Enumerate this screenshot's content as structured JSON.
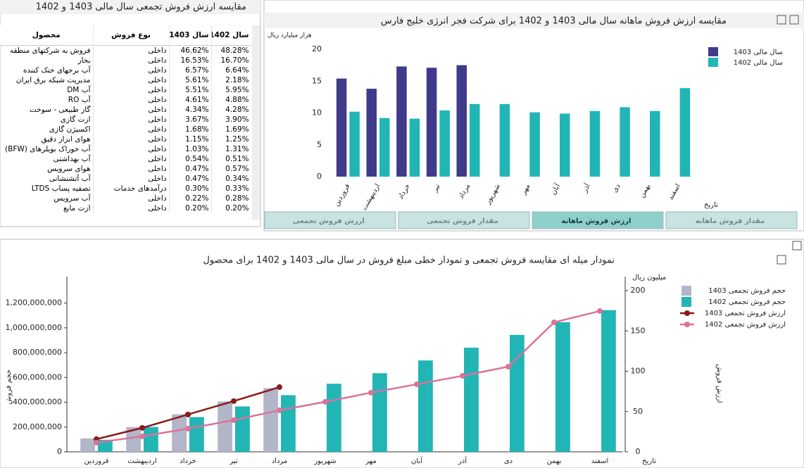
{
  "table_panel": {
    "title": "مقایسه ارزش فروش تجمعی سال مالی 1403 و 1402",
    "columns": [
      "محصول",
      "نوع فروش",
      "سال 1403",
      "سال 1402"
    ],
    "rows": [
      [
        "فروش به شرکتهای منطقه",
        "داخلی",
        "46.62%",
        "48.28%"
      ],
      [
        "بخار",
        "داخلی",
        "16.53%",
        "16.70%"
      ],
      [
        "آب برجهای خنک کننده",
        "داخلی",
        "6.57%",
        "6.64%"
      ],
      [
        "مدیریت شبکه برق ایران",
        "داخلی",
        "5.61%",
        "2.18%"
      ],
      [
        "آب DM",
        "داخلی",
        "5.51%",
        "5.95%"
      ],
      [
        "آب RO",
        "داخلی",
        "4.61%",
        "4.88%"
      ],
      [
        "گاز طبیعی - سوخت",
        "داخلی",
        "4.34%",
        "4.28%"
      ],
      [
        "ازت گازی",
        "داخلی",
        "3.67%",
        "3.90%"
      ],
      [
        "اکسیژن گازی",
        "داخلی",
        "1.68%",
        "1.69%"
      ],
      [
        "هوای ابزار دقیق",
        "داخلی",
        "1.15%",
        "1.25%"
      ],
      [
        "آب خوراک بویلرهای (BFW)",
        "داخلی",
        "1.03%",
        "1.31%"
      ],
      [
        "آب بهداشتی",
        "داخلی",
        "0.54%",
        "0.51%"
      ],
      [
        "هوای سرویس",
        "داخلی",
        "0.47%",
        "0.57%"
      ],
      [
        "آب آتشنشانی",
        "داخلی",
        "0.47%",
        "0.34%"
      ],
      [
        "تصفیه پساب LTDS",
        "درآمدهای خدمات",
        "0.30%",
        "0.33%"
      ],
      [
        "آب سرویس",
        "داخلی",
        "0.22%",
        "0.28%"
      ],
      [
        "ازت مایع",
        "داخلی",
        "0.20%",
        "0.20%"
      ]
    ]
  },
  "tabs": [
    "مقدار فروش ماهانه",
    "ارزش فروش ماهانه",
    "مقدار فروش تجمعی",
    "ارزش فروش تجمعی"
  ],
  "active_tab": 1,
  "chart_data": [
    {
      "type": "bar",
      "title": "مقایسه ارزش فروش ماهانه سال مالی 1403 و 1402 برای شرکت فجر انرژی خلیج فارس",
      "y_label": "هزار میلیارد ریال",
      "x_label": "تاریخ",
      "categories": [
        "فروردین",
        "اردیبهشت",
        "خرداد",
        "تیر",
        "مرداد",
        "شهریور",
        "مهر",
        "آبان",
        "آذر",
        "دی",
        "بهمن",
        "اسفند"
      ],
      "series": [
        {
          "name": "سال مالی 1403",
          "color": "#3f3a8a",
          "values": [
            15.4,
            13.8,
            17.3,
            17.1,
            17.5,
            null,
            null,
            null,
            null,
            null,
            null,
            null
          ]
        },
        {
          "name": "سال مالی 1402",
          "color": "#22b5b5",
          "values": [
            10.2,
            9.2,
            9.1,
            10.4,
            11.4,
            11.4,
            10.1,
            9.9,
            10.3,
            10.9,
            10.3,
            13.9
          ]
        }
      ],
      "ylim": [
        0,
        20
      ],
      "yticks": [
        0,
        5,
        10,
        15,
        20
      ]
    },
    {
      "type": "bar_line",
      "title": "نمودار میله ای مقایسه فروش تجمعی و نمودار خطی مبلغ فروش در سال مالی 1403 و 1402 برای محصول",
      "y_label": "حجم فروش",
      "y2_label": "ارزش فروش",
      "y2_unit": "میلیون ریال",
      "x_label": "تاریخ",
      "categories": [
        "فروردین",
        "اردیبهشت",
        "خرداد",
        "تیر",
        "مرداد",
        "شهریور",
        "مهر",
        "آبان",
        "آذر",
        "دی",
        "بهمن",
        "اسفند"
      ],
      "series": [
        {
          "name": "حجم فروش تجمعی 1403",
          "type": "bar",
          "color": "#b3b5c8",
          "values": [
            108000000,
            200000000,
            303000000,
            406000000,
            514000000,
            null,
            null,
            null,
            null,
            null,
            null,
            null
          ]
        },
        {
          "name": "حجم فروش تجمعی 1402",
          "type": "bar",
          "color": "#22b5b5",
          "values": [
            97000000,
            200000000,
            280000000,
            366000000,
            457000000,
            549000000,
            634000000,
            737000000,
            840000000,
            943000000,
            1046000000,
            1143000000
          ]
        },
        {
          "name": "ارزش فروش تجمعی 1403",
          "type": "line",
          "axis": "y2",
          "color": "#8b1a1a",
          "values": [
            15.7,
            29.7,
            46.3,
            62.9,
            80.3,
            null,
            null,
            null,
            null,
            null,
            null,
            null
          ]
        },
        {
          "name": "ارزش فروش تجمعی 1402",
          "type": "line",
          "axis": "y2",
          "color": "#d9739a",
          "values": [
            11.4,
            19.2,
            28.8,
            39.3,
            51.5,
            62,
            73.4,
            83.8,
            94.3,
            105.7,
            160.7,
            174.7
          ]
        }
      ],
      "ylim": [
        0,
        1300000000
      ],
      "yticks": [
        0,
        {
          "value": 200000000,
          "label": "200,000,000"
        },
        {
          "value": 400000000,
          "label": "400,000,000"
        },
        {
          "value": 600000000,
          "label": "600,000,000"
        },
        {
          "value": 800000000,
          "label": "800,000,000"
        },
        {
          "value": 1000000000,
          "label": "1,000,000,000"
        },
        {
          "value": 1200000000,
          "label": "1,200,000,000"
        }
      ],
      "y2lim": [
        0,
        200
      ],
      "y2ticks": [
        0,
        50,
        100,
        150,
        200
      ]
    }
  ]
}
